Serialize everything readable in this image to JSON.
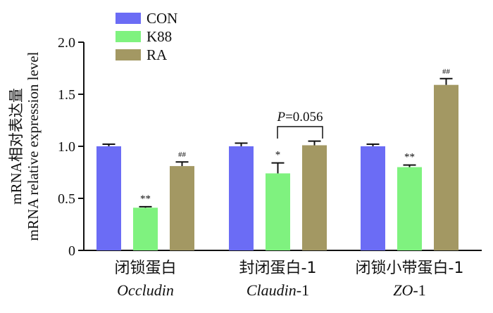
{
  "chart_data": {
    "type": "bar",
    "ylabel_zh": "mRNA相对表达量",
    "ylabel_en": "mRNA relative expression level",
    "ylim": [
      0,
      2.0
    ],
    "yticks": [
      "0",
      "0.5",
      "1.0",
      "1.5",
      "2.0"
    ],
    "categories": [
      {
        "zh": "闭锁蛋白",
        "en_italic": "Occludin",
        "en_suffix": ""
      },
      {
        "zh": "封闭蛋白-1",
        "en_italic": "Claudin",
        "en_suffix": "-1"
      },
      {
        "zh": "闭锁小带蛋白-1",
        "en_italic": "ZO",
        "en_suffix": "-1"
      }
    ],
    "series": [
      {
        "name": "CON",
        "color": "#6b6cf5",
        "values": [
          1.0,
          1.0,
          1.0
        ],
        "errors": [
          0.02,
          0.03,
          0.02
        ],
        "marks": [
          "",
          "",
          ""
        ]
      },
      {
        "name": "K88",
        "color": "#7ff27f",
        "values": [
          0.41,
          0.74,
          0.8
        ],
        "errors": [
          0.01,
          0.1,
          0.02
        ],
        "marks": [
          "**",
          "*",
          "**"
        ]
      },
      {
        "name": "RA",
        "color": "#a39863",
        "values": [
          0.81,
          1.01,
          1.59
        ],
        "errors": [
          0.04,
          0.04,
          0.06
        ],
        "marks": [
          "##",
          "",
          "##"
        ]
      }
    ],
    "annotation": {
      "p_label": "P",
      "p_value": "=0.056"
    },
    "legend_position": "top-left",
    "grid": false
  }
}
